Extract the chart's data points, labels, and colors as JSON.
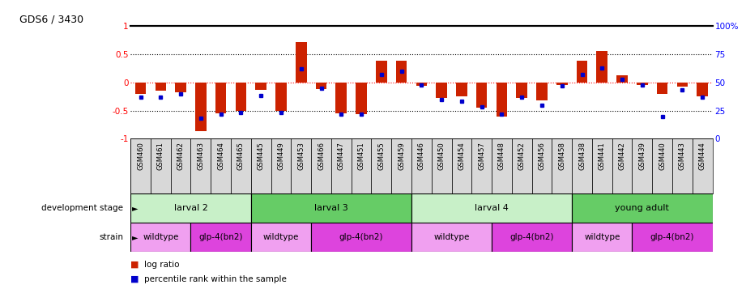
{
  "title": "GDS6 / 3430",
  "samples": [
    "GSM460",
    "GSM461",
    "GSM462",
    "GSM463",
    "GSM464",
    "GSM465",
    "GSM445",
    "GSM449",
    "GSM453",
    "GSM466",
    "GSM447",
    "GSM451",
    "GSM455",
    "GSM459",
    "GSM446",
    "GSM450",
    "GSM454",
    "GSM457",
    "GSM448",
    "GSM452",
    "GSM456",
    "GSM458",
    "GSM438",
    "GSM441",
    "GSM442",
    "GSM439",
    "GSM440",
    "GSM443",
    "GSM444"
  ],
  "log_ratio": [
    -0.2,
    -0.15,
    -0.18,
    -0.87,
    -0.55,
    -0.5,
    -0.13,
    -0.5,
    0.72,
    -0.12,
    -0.55,
    -0.57,
    0.38,
    0.39,
    -0.06,
    -0.28,
    -0.25,
    -0.45,
    -0.6,
    -0.27,
    -0.32,
    -0.05,
    0.38,
    0.55,
    0.12,
    -0.04,
    -0.2,
    -0.08,
    -0.25
  ],
  "percentile": [
    37,
    37,
    40,
    18,
    22,
    23,
    38,
    23,
    62,
    45,
    22,
    22,
    57,
    60,
    48,
    35,
    33,
    28,
    22,
    37,
    30,
    47,
    57,
    63,
    53,
    48,
    20,
    43,
    37
  ],
  "development_stages": [
    {
      "label": "larval 2",
      "start": 0,
      "end": 6,
      "color": "#c8f0c8"
    },
    {
      "label": "larval 3",
      "start": 6,
      "end": 14,
      "color": "#66cc66"
    },
    {
      "label": "larval 4",
      "start": 14,
      "end": 22,
      "color": "#c8f0c8"
    },
    {
      "label": "young adult",
      "start": 22,
      "end": 29,
      "color": "#66cc66"
    }
  ],
  "strains": [
    {
      "label": "wildtype",
      "start": 0,
      "end": 3,
      "color": "#f0a0f0"
    },
    {
      "label": "glp-4(bn2)",
      "start": 3,
      "end": 6,
      "color": "#dd44dd"
    },
    {
      "label": "wildtype",
      "start": 6,
      "end": 9,
      "color": "#f0a0f0"
    },
    {
      "label": "glp-4(bn2)",
      "start": 9,
      "end": 14,
      "color": "#dd44dd"
    },
    {
      "label": "wildtype",
      "start": 14,
      "end": 18,
      "color": "#f0a0f0"
    },
    {
      "label": "glp-4(bn2)",
      "start": 18,
      "end": 22,
      "color": "#dd44dd"
    },
    {
      "label": "wildtype",
      "start": 22,
      "end": 25,
      "color": "#f0a0f0"
    },
    {
      "label": "glp-4(bn2)",
      "start": 25,
      "end": 29,
      "color": "#dd44dd"
    }
  ],
  "bar_color": "#cc2200",
  "dot_color": "#0000cc",
  "ylim": [
    -1.0,
    1.0
  ],
  "right_ylim": [
    0,
    100
  ],
  "right_yticks": [
    0,
    25,
    50,
    75,
    100
  ],
  "right_yticklabels": [
    "0",
    "25",
    "50",
    "75",
    "100%"
  ],
  "left_yticks": [
    -1.0,
    -0.5,
    0.0,
    0.5,
    1.0
  ],
  "left_yticklabels": [
    "-1",
    "-0.5",
    "0",
    "0.5",
    "1"
  ],
  "hlines_black": [
    -0.5,
    0.5
  ],
  "hline_red": 0.0,
  "bar_width": 0.55,
  "sample_bg_color": "#d8d8d8",
  "legend_bar_color": "#cc2200",
  "legend_dot_color": "#0000cc"
}
